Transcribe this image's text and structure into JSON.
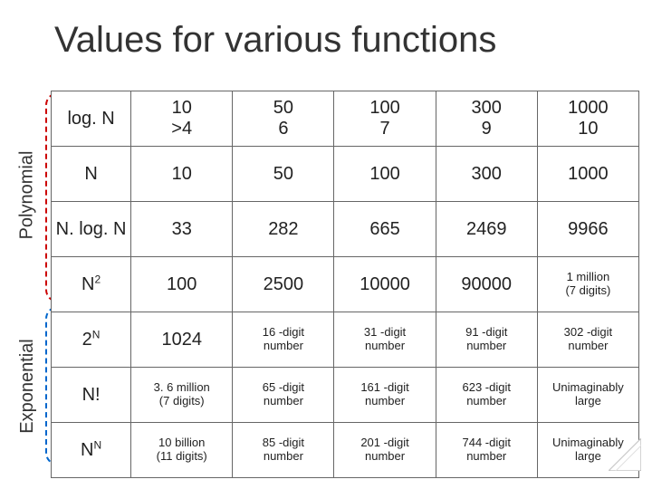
{
  "title": "Values for various functions",
  "side_labels": {
    "polynomial": "Polynomial",
    "exponential": "Exponential"
  },
  "columns": [
    "",
    "10",
    "50",
    "100",
    "300",
    "1000"
  ],
  "header_row2": [
    ">4",
    "6",
    "7",
    "9",
    "10"
  ],
  "rows": [
    {
      "fn_html": "log. N",
      "cells_top": [
        "10",
        "50",
        "100",
        "300",
        "1000"
      ],
      "cells_bot": [
        ">4",
        "6",
        "7",
        "9",
        "10"
      ],
      "is_log": true
    },
    {
      "fn_html": "N",
      "cells": [
        "10",
        "50",
        "100",
        "300",
        "1000"
      ]
    },
    {
      "fn_html": "N. log. N",
      "cells": [
        "33",
        "282",
        "665",
        "2469",
        "9966"
      ]
    },
    {
      "fn_html": "N<span class='sup'>2</span>",
      "cells": [
        "100",
        "2500",
        "10000",
        "90000",
        "1 million\n(7 digits)"
      ]
    },
    {
      "fn_html": "2<span class='sup'>N</span>",
      "cells": [
        "1024",
        "16 -digit\nnumber",
        "31 -digit\nnumber",
        "91 -digit\nnumber",
        "302 -digit\nnumber"
      ]
    },
    {
      "fn_html": "N!",
      "cells": [
        "3. 6 million\n(7 digits)",
        "65 -digit\nnumber",
        "161 -digit\nnumber",
        "623 -digit\nnumber",
        "Unimaginably\nlarge"
      ]
    },
    {
      "fn_html": "N<span class='sup'>N</span>",
      "cells": [
        "10 billion\n(11 digits)",
        "85 -digit\nnumber",
        "201 -digit\nnumber",
        "744 -digit\nnumber",
        "Unimaginably\nlarge"
      ]
    }
  ],
  "group_colors": {
    "polynomial": "#cc0000",
    "exponential": "#0066cc"
  }
}
